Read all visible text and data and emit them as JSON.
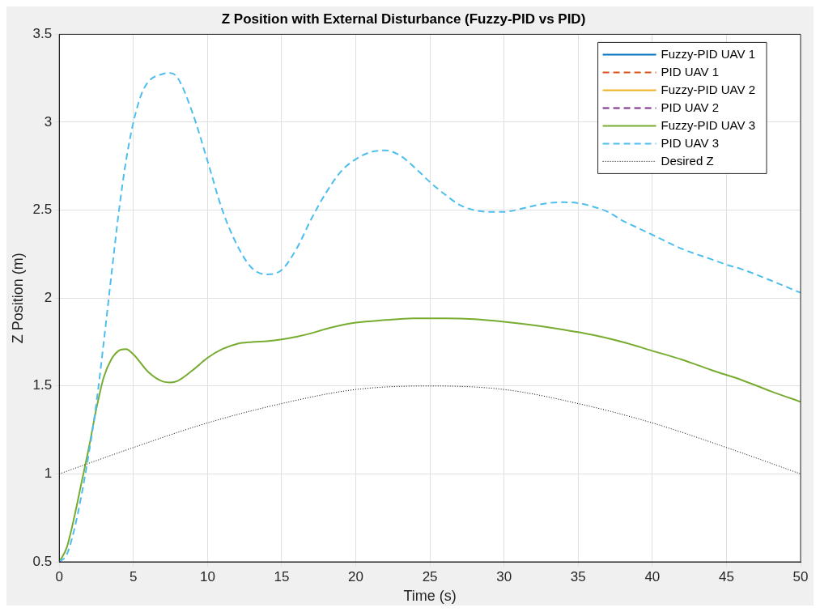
{
  "chart_data": {
    "type": "line",
    "title": "Z Position with External Disturbance (Fuzzy-PID vs PID)",
    "xlabel": "Time (s)",
    "ylabel": "Z Position (m)",
    "xlim": [
      0,
      50
    ],
    "xticks": [
      0,
      5,
      10,
      15,
      20,
      25,
      30,
      35,
      40,
      45,
      50
    ],
    "ylim": [
      0.5,
      3.5
    ],
    "yticks": [
      0.5,
      1,
      1.5,
      2,
      2.5,
      3,
      3.5
    ],
    "grid": true,
    "legend": "top right",
    "marker": "none",
    "series": [
      {
        "name": "Fuzzy-PID UAV 1",
        "color": "#0072bd",
        "line_style": "solid"
      },
      {
        "name": "PID UAV 1",
        "color": "#d95319",
        "line_style": "dashed"
      },
      {
        "name": "Fuzzy-PID UAV 2",
        "color": "#edb120",
        "line_style": "solid"
      },
      {
        "name": "PID UAV 2",
        "color": "#7e2f8e",
        "line_style": "dashed"
      },
      {
        "name": "Fuzzy-PID UAV 3",
        "color": "#77ac30",
        "line_style": "solid",
        "x": [
          0,
          0.5,
          1,
          1.5,
          2,
          2.5,
          3,
          3.5,
          4,
          4.5,
          5,
          6,
          7,
          7.5,
          8,
          9,
          10,
          11,
          12,
          13,
          14,
          15,
          16,
          17,
          18,
          20,
          22,
          24,
          26,
          28,
          30,
          32,
          34,
          36,
          38,
          40,
          42,
          44,
          46,
          48,
          50
        ],
        "values": [
          0.5,
          0.58,
          0.75,
          0.95,
          1.15,
          1.37,
          1.55,
          1.65,
          1.7,
          1.71,
          1.68,
          1.58,
          1.525,
          1.52,
          1.53,
          1.59,
          1.66,
          1.71,
          1.74,
          1.75,
          1.755,
          1.765,
          1.78,
          1.8,
          1.825,
          1.86,
          1.875,
          1.885,
          1.885,
          1.88,
          1.865,
          1.845,
          1.82,
          1.79,
          1.75,
          1.7,
          1.65,
          1.59,
          1.535,
          1.47,
          1.41
        ]
      },
      {
        "name": "PID UAV 3",
        "color": "#4dbeee",
        "line_style": "dashed",
        "x": [
          0,
          0.5,
          1,
          1.5,
          2,
          2.5,
          3,
          3.5,
          4,
          4.5,
          5,
          5.5,
          6,
          7,
          7.5,
          8,
          9,
          10,
          11,
          12,
          13,
          14,
          15,
          16,
          17,
          18,
          19,
          20,
          21,
          22,
          23,
          24,
          25,
          26,
          27,
          28,
          29,
          30,
          31,
          32,
          33,
          34,
          35,
          36,
          37,
          38,
          39,
          40,
          42,
          44,
          45,
          46,
          48,
          50
        ],
        "values": [
          0.5,
          0.54,
          0.68,
          0.88,
          1.12,
          1.4,
          1.75,
          2.12,
          2.48,
          2.78,
          3.0,
          3.15,
          3.23,
          3.275,
          3.28,
          3.25,
          3.05,
          2.78,
          2.5,
          2.3,
          2.17,
          2.135,
          2.16,
          2.28,
          2.45,
          2.6,
          2.72,
          2.79,
          2.83,
          2.84,
          2.81,
          2.74,
          2.66,
          2.59,
          2.53,
          2.5,
          2.49,
          2.49,
          2.505,
          2.525,
          2.54,
          2.545,
          2.54,
          2.52,
          2.49,
          2.44,
          2.4,
          2.36,
          2.28,
          2.22,
          2.19,
          2.165,
          2.1,
          2.03
        ]
      },
      {
        "name": "Desired Z",
        "color": "#000000",
        "line_style": "dotted",
        "x": [
          0,
          5,
          10,
          15,
          20,
          25,
          30,
          35,
          40,
          45,
          50
        ],
        "values": [
          1,
          1.15,
          1.29,
          1.4,
          1.48,
          1.5,
          1.48,
          1.4,
          1.29,
          1.15,
          1
        ]
      }
    ]
  }
}
